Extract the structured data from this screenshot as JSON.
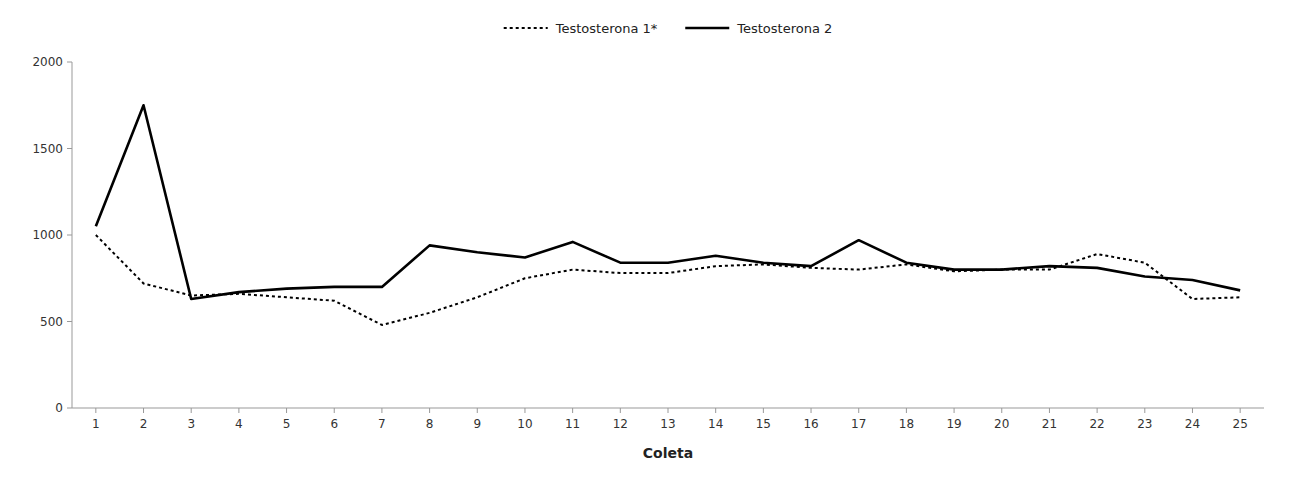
{
  "chart_data": {
    "type": "line",
    "xlabel": "Coleta",
    "x": [
      1,
      2,
      3,
      4,
      5,
      6,
      7,
      8,
      9,
      10,
      11,
      12,
      13,
      14,
      15,
      16,
      17,
      18,
      19,
      20,
      21,
      22,
      23,
      24,
      25
    ],
    "series": [
      {
        "name": "Testosterona 1*",
        "color": "#000000",
        "line_style": "dotted",
        "values": [
          1000,
          720,
          650,
          660,
          640,
          620,
          480,
          550,
          640,
          750,
          800,
          780,
          780,
          820,
          830,
          810,
          800,
          830,
          790,
          800,
          800,
          890,
          840,
          630,
          640
        ]
      },
      {
        "name": "Testosterona 2",
        "color": "#000000",
        "line_style": "solid",
        "values": [
          1050,
          1750,
          630,
          670,
          690,
          700,
          700,
          940,
          900,
          870,
          960,
          840,
          840,
          880,
          840,
          820,
          970,
          840,
          800,
          800,
          820,
          810,
          760,
          740,
          680
        ]
      }
    ],
    "xlim": [
      0.5,
      25.5
    ],
    "ylim": [
      0,
      2000
    ],
    "xticks": [
      1,
      2,
      3,
      4,
      5,
      6,
      7,
      8,
      9,
      10,
      11,
      12,
      13,
      14,
      15,
      16,
      17,
      18,
      19,
      20,
      21,
      22,
      23,
      24,
      25
    ],
    "yticks": [
      0,
      500,
      1000,
      1500,
      2000
    ],
    "grid": false,
    "legend": "top"
  }
}
